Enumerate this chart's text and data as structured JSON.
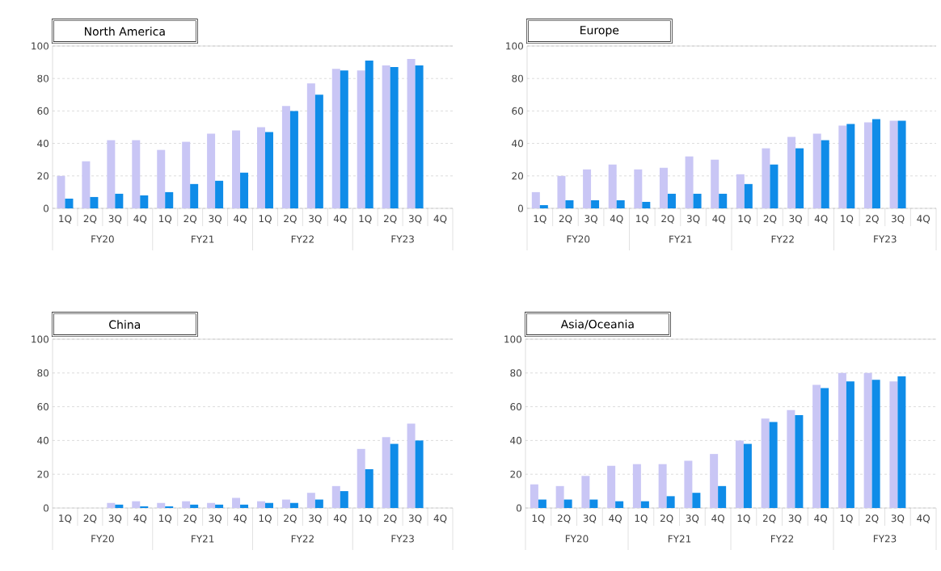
{
  "chart_data": [
    {
      "type": "bar",
      "title": "North America",
      "categories": [
        "1Q",
        "2Q",
        "3Q",
        "4Q",
        "1Q",
        "2Q",
        "3Q",
        "4Q",
        "1Q",
        "2Q",
        "3Q",
        "4Q",
        "1Q",
        "2Q",
        "3Q",
        "4Q"
      ],
      "annotations": [
        "FY20",
        "FY21",
        "FY22",
        "FY23"
      ],
      "ylim": [
        0,
        100
      ],
      "yticks": [
        0,
        20,
        40,
        60,
        80,
        100
      ],
      "grid": "y",
      "series": [
        {
          "color": "#c9c6f5",
          "values": [
            20,
            29,
            42,
            42,
            36,
            41,
            46,
            48,
            50,
            63,
            77,
            86,
            85,
            88,
            92,
            null
          ]
        },
        {
          "color": "#0f8ce8",
          "values": [
            6,
            7,
            9,
            8,
            10,
            15,
            17,
            22,
            47,
            60,
            70,
            85,
            91,
            87,
            88,
            null
          ]
        }
      ]
    },
    {
      "type": "bar",
      "title": "Europe",
      "categories": [
        "1Q",
        "2Q",
        "3Q",
        "4Q",
        "1Q",
        "2Q",
        "3Q",
        "4Q",
        "1Q",
        "2Q",
        "3Q",
        "4Q",
        "1Q",
        "2Q",
        "3Q",
        "4Q"
      ],
      "annotations": [
        "FY20",
        "FY21",
        "FY22",
        "FY23"
      ],
      "ylim": [
        0,
        100
      ],
      "yticks": [
        0,
        20,
        40,
        60,
        80,
        100
      ],
      "grid": "y",
      "series": [
        {
          "color": "#c9c6f5",
          "values": [
            10,
            20,
            24,
            27,
            24,
            25,
            32,
            30,
            21,
            37,
            44,
            46,
            51,
            53,
            54,
            null
          ]
        },
        {
          "color": "#0f8ce8",
          "values": [
            2,
            5,
            5,
            5,
            4,
            9,
            9,
            9,
            15,
            27,
            37,
            42,
            52,
            55,
            54,
            null
          ]
        }
      ]
    },
    {
      "type": "bar",
      "title": "China",
      "categories": [
        "1Q",
        "2Q",
        "3Q",
        "4Q",
        "1Q",
        "2Q",
        "3Q",
        "4Q",
        "1Q",
        "2Q",
        "3Q",
        "4Q",
        "1Q",
        "2Q",
        "3Q",
        "4Q"
      ],
      "annotations": [
        "FY20",
        "FY21",
        "FY22",
        "FY23"
      ],
      "ylim": [
        0,
        100
      ],
      "yticks": [
        0,
        20,
        40,
        60,
        80,
        100
      ],
      "grid": "y",
      "series": [
        {
          "color": "#c9c6f5",
          "values": [
            0,
            0,
            3,
            4,
            3,
            4,
            3,
            6,
            4,
            5,
            9,
            13,
            35,
            42,
            50,
            null
          ]
        },
        {
          "color": "#0f8ce8",
          "values": [
            0,
            0,
            2,
            1,
            1,
            2,
            2,
            2,
            3,
            3,
            5,
            10,
            23,
            38,
            40,
            null
          ]
        }
      ]
    },
    {
      "type": "bar",
      "title": "Asia/Oceania",
      "categories": [
        "1Q",
        "2Q",
        "3Q",
        "4Q",
        "1Q",
        "2Q",
        "3Q",
        "4Q",
        "1Q",
        "2Q",
        "3Q",
        "4Q",
        "1Q",
        "2Q",
        "3Q",
        "4Q"
      ],
      "annotations": [
        "FY20",
        "FY21",
        "FY22",
        "FY23"
      ],
      "ylim": [
        0,
        100
      ],
      "yticks": [
        0,
        20,
        40,
        60,
        80,
        100
      ],
      "grid": "y",
      "series": [
        {
          "color": "#c9c6f5",
          "values": [
            14,
            13,
            19,
            25,
            26,
            26,
            28,
            32,
            40,
            53,
            58,
            73,
            80,
            80,
            75,
            null
          ]
        },
        {
          "color": "#0f8ce8",
          "values": [
            5,
            5,
            5,
            4,
            4,
            7,
            9,
            13,
            38,
            51,
            55,
            71,
            75,
            76,
            78,
            null
          ]
        }
      ]
    }
  ]
}
